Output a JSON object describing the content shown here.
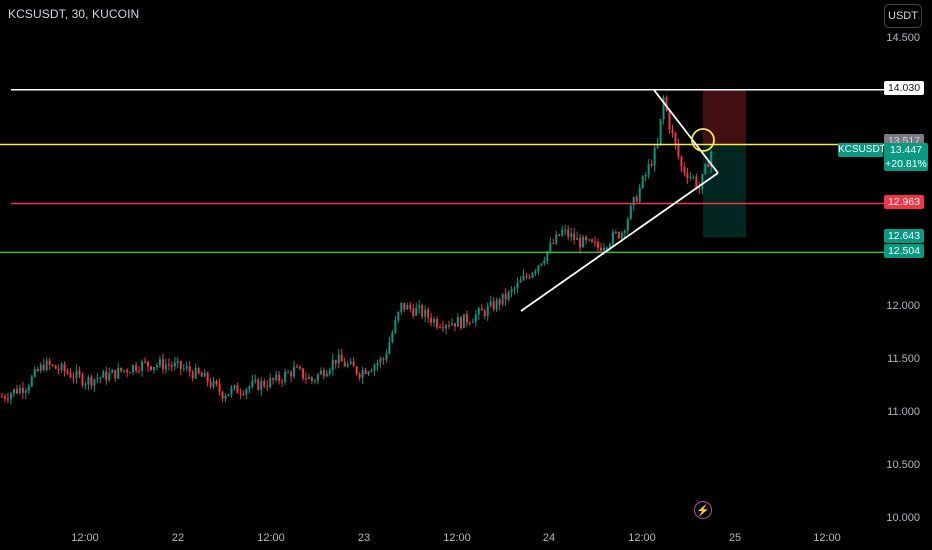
{
  "header": {
    "title": "KCSUSDT, 30, KUCOIN",
    "currency_button": "USDT"
  },
  "y_axis": {
    "ticks": [
      "14.500",
      "12.000",
      "11.500",
      "11.000",
      "10.500",
      "10.000"
    ]
  },
  "x_axis": {
    "ticks": [
      "12:00",
      "22",
      "12:00",
      "23",
      "12:00",
      "24",
      "12:00",
      "25",
      "12:00"
    ]
  },
  "price_tags": {
    "resistance": "14.030",
    "hidden": "13.517",
    "stop": "12.963",
    "target1": "12.643",
    "target2": "12.504"
  },
  "current": {
    "symbol": "KCSUSDT",
    "price": "13.447",
    "change": "+20.81%"
  },
  "colors": {
    "up": "#089981",
    "down": "#f23645",
    "resistance_line": "#ffffff",
    "entry_line": "#ffeb3b",
    "stop_line": "#f23645",
    "support_line": "#4caf50"
  },
  "icons": {
    "flash": "flash-icon"
  },
  "chart_data": {
    "type": "candlestick",
    "symbol": "KCSUSDT",
    "interval": "30",
    "exchange": "KUCOIN",
    "ylim": [
      10.0,
      14.7
    ],
    "x_ticks": [
      "12:00",
      "22",
      "12:00",
      "23",
      "12:00",
      "24",
      "12:00",
      "25",
      "12:00"
    ],
    "horizontal_levels": [
      {
        "price": 14.03,
        "color": "#ffffff"
      },
      {
        "price": 13.517,
        "color": "#ffeb3b"
      },
      {
        "price": 12.963,
        "color": "#f23645"
      },
      {
        "price": 12.504,
        "color": "#4caf50"
      }
    ],
    "trade_box": {
      "entry": 13.517,
      "stop": 14.03,
      "target": 12.643
    },
    "waypoints": [
      {
        "i": 0,
        "p": 11.15
      },
      {
        "i": 8,
        "p": 11.25
      },
      {
        "i": 14,
        "p": 11.45
      },
      {
        "i": 20,
        "p": 11.4
      },
      {
        "i": 28,
        "p": 11.3
      },
      {
        "i": 36,
        "p": 11.35
      },
      {
        "i": 46,
        "p": 11.45
      },
      {
        "i": 56,
        "p": 11.45
      },
      {
        "i": 62,
        "p": 11.4
      },
      {
        "i": 68,
        "p": 11.32
      },
      {
        "i": 74,
        "p": 11.18
      },
      {
        "i": 84,
        "p": 11.25
      },
      {
        "i": 92,
        "p": 11.3
      },
      {
        "i": 98,
        "p": 11.4
      },
      {
        "i": 104,
        "p": 11.3
      },
      {
        "i": 112,
        "p": 11.5
      },
      {
        "i": 120,
        "p": 11.38
      },
      {
        "i": 128,
        "p": 11.5
      },
      {
        "i": 134,
        "p": 12.0
      },
      {
        "i": 140,
        "p": 11.95
      },
      {
        "i": 146,
        "p": 11.85
      },
      {
        "i": 154,
        "p": 11.85
      },
      {
        "i": 162,
        "p": 11.95
      },
      {
        "i": 170,
        "p": 12.1
      },
      {
        "i": 180,
        "p": 12.4
      },
      {
        "i": 188,
        "p": 12.7
      },
      {
        "i": 194,
        "p": 12.6
      },
      {
        "i": 200,
        "p": 12.55
      },
      {
        "i": 208,
        "p": 12.7
      },
      {
        "i": 214,
        "p": 13.1
      },
      {
        "i": 220,
        "p": 13.5
      },
      {
        "i": 222,
        "p": 13.95
      },
      {
        "i": 224,
        "p": 13.7
      },
      {
        "i": 228,
        "p": 13.3
      },
      {
        "i": 232,
        "p": 13.2
      },
      {
        "i": 234,
        "p": 13.1
      },
      {
        "i": 238,
        "p": 13.45
      }
    ]
  }
}
